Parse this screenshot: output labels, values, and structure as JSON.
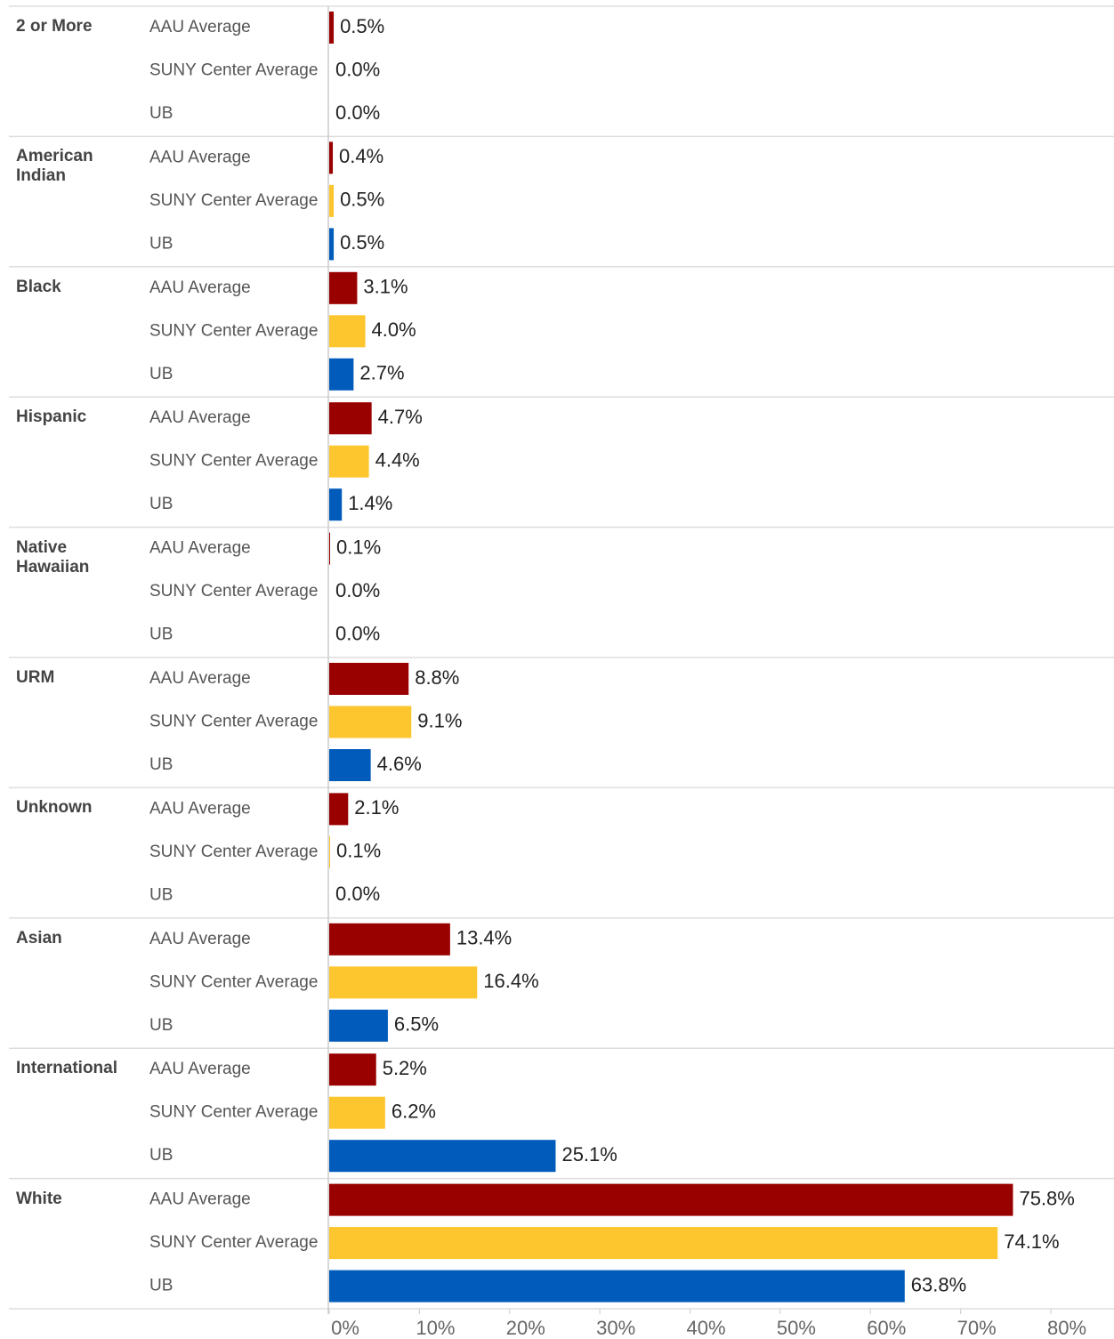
{
  "chart_data": {
    "type": "grouped-hbar",
    "categories": [
      "2 or More",
      "American Indian",
      "Black",
      "Hispanic",
      "Native Hawaiian",
      "URM",
      "Unknown",
      "Asian",
      "International",
      "White"
    ],
    "series": [
      {
        "name": "AAU Average",
        "color": "#990000",
        "values": [
          0.5,
          0.4,
          3.1,
          4.7,
          0.1,
          8.8,
          2.1,
          13.4,
          5.2,
          75.8
        ],
        "value_labels": [
          "0.5%",
          "0.4%",
          "3.1%",
          "4.7%",
          "0.1%",
          "8.8%",
          "2.1%",
          "13.4%",
          "5.2%",
          "75.8%"
        ]
      },
      {
        "name": "SUNY Center Average",
        "color": "#fdc52e",
        "values": [
          0.0,
          0.5,
          4.0,
          4.4,
          0.0,
          9.1,
          0.1,
          16.4,
          6.2,
          74.1
        ],
        "value_labels": [
          "0.0%",
          "0.5%",
          "4.0%",
          "4.4%",
          "0.0%",
          "9.1%",
          "0.1%",
          "16.4%",
          "6.2%",
          "74.1%"
        ]
      },
      {
        "name": "UB",
        "color": "#005bbb",
        "values": [
          0.0,
          0.5,
          2.7,
          1.4,
          0.0,
          4.6,
          0.0,
          6.5,
          25.1,
          63.8
        ],
        "value_labels": [
          "0.0%",
          "0.5%",
          "2.7%",
          "1.4%",
          "0.0%",
          "4.6%",
          "0.0%",
          "6.5%",
          "25.1%",
          "63.8%"
        ]
      }
    ],
    "xlim": [
      0,
      87
    ],
    "xticks": [
      {
        "value": 0,
        "label": "0%"
      },
      {
        "value": 10,
        "label": "10%"
      },
      {
        "value": 20,
        "label": "20%"
      },
      {
        "value": 30,
        "label": "30%"
      },
      {
        "value": 40,
        "label": "40%"
      },
      {
        "value": 50,
        "label": "50%"
      },
      {
        "value": 60,
        "label": "60%"
      },
      {
        "value": 70,
        "label": "70%"
      },
      {
        "value": 80,
        "label": "80%"
      }
    ]
  }
}
